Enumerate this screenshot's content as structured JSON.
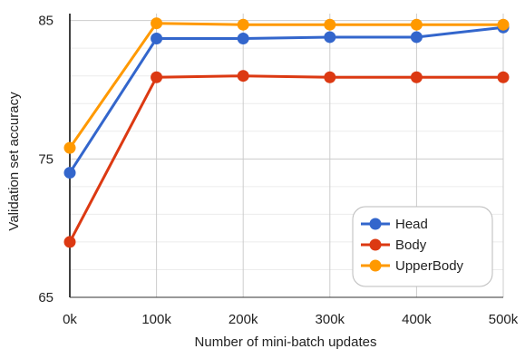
{
  "chart_data": {
    "type": "line",
    "title": "",
    "xlabel": "Number of mini-batch updates",
    "ylabel": "Validation set accuracy",
    "x": [
      0,
      100,
      200,
      300,
      400,
      500
    ],
    "x_tick_labels": [
      "0k",
      "100k",
      "200k",
      "300k",
      "400k",
      "500k"
    ],
    "y_ticks": [
      65,
      75,
      85
    ],
    "ylim": [
      65,
      85.5
    ],
    "grid": true,
    "legend_position": "bottom-right",
    "series": [
      {
        "name": "Head",
        "color": "#3366cc",
        "values": [
          74.0,
          83.7,
          83.7,
          83.8,
          83.8,
          84.5
        ]
      },
      {
        "name": "Body",
        "color": "#dc3912",
        "values": [
          69.0,
          80.9,
          81.0,
          80.9,
          80.9,
          80.9
        ]
      },
      {
        "name": "UpperBody",
        "color": "#ff9900",
        "values": [
          75.8,
          84.8,
          84.7,
          84.7,
          84.7,
          84.7
        ]
      }
    ]
  }
}
